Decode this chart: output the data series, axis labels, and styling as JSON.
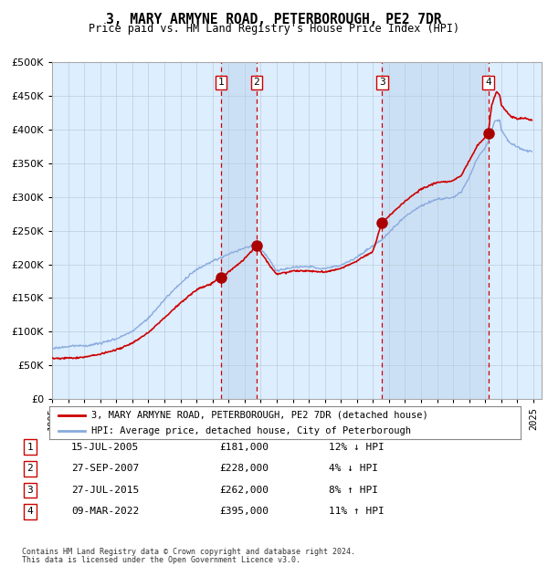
{
  "title": "3, MARY ARMYNE ROAD, PETERBOROUGH, PE2 7DR",
  "subtitle": "Price paid vs. HM Land Registry's House Price Index (HPI)",
  "legend_line1": "3, MARY ARMYNE ROAD, PETERBOROUGH, PE2 7DR (detached house)",
  "legend_line2": "HPI: Average price, detached house, City of Peterborough",
  "transactions": [
    {
      "num": 1,
      "date": "15-JUL-2005",
      "price": 181000,
      "rel": "12% ↓ HPI",
      "x_year": 2005.54
    },
    {
      "num": 2,
      "date": "27-SEP-2007",
      "price": 228000,
      "rel": "4% ↓ HPI",
      "x_year": 2007.74
    },
    {
      "num": 3,
      "date": "27-JUL-2015",
      "price": 262000,
      "rel": "8% ↑ HPI",
      "x_year": 2015.57
    },
    {
      "num": 4,
      "date": "09-MAR-2022",
      "price": 395000,
      "rel": "11% ↑ HPI",
      "x_year": 2022.19
    }
  ],
  "footnote1": "Contains HM Land Registry data © Crown copyright and database right 2024.",
  "footnote2": "This data is licensed under the Open Government Licence v3.0.",
  "hpi_color": "#88aadd",
  "price_color": "#cc0000",
  "marker_color": "#aa0000",
  "dashed_color": "#cc0000",
  "bg_color": "#ddeeff",
  "shade_color": "#cce0f5",
  "grid_color": "#bbccdd",
  "ylim": [
    0,
    500000
  ],
  "xlim_start": 1995.0,
  "xlim_end": 2025.5
}
